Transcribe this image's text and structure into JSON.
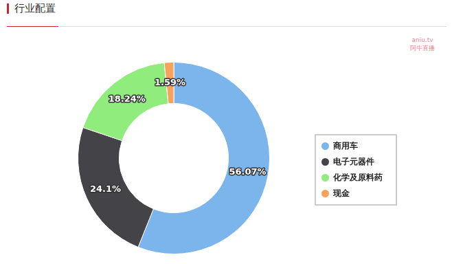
{
  "chart_data": {
    "type": "doughnut",
    "title": "行业配置",
    "annotations": [
      "aniu.tv",
      "阿牛直播"
    ],
    "categories": [
      "商用车",
      "电子元器件",
      "化学及原料药",
      "现金"
    ],
    "values": [
      56.07,
      24.1,
      18.24,
      1.59
    ],
    "value_labels": [
      "56.07%",
      "24.1%",
      "18.24%",
      "1.59%"
    ],
    "colors": [
      "#7cb5ec",
      "#434348",
      "#90ed7d",
      "#f7a35c"
    ],
    "data_labels": true,
    "legend": "right"
  }
}
